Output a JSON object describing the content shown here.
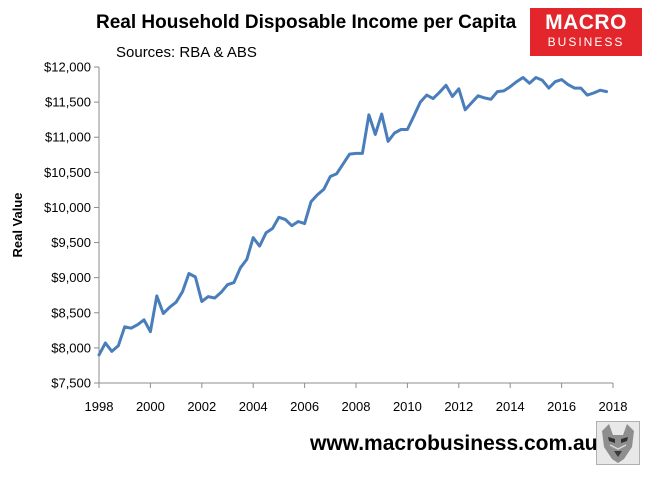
{
  "header": {
    "title": "Real Household Disposable Income per Capita",
    "subtitle": "Sources: RBA & ABS"
  },
  "logo": {
    "line1": "MACRO",
    "line2": "BUSINESS",
    "color": "#e2262b"
  },
  "footer": {
    "url": "www.macrobusiness.com.au"
  },
  "chart_data": {
    "type": "line",
    "title": "Real Household Disposable Income per Capita",
    "subtitle": "Sources: RBA & ABS",
    "xlabel": "",
    "ylabel": "Real Value",
    "xlim": [
      1998,
      2018
    ],
    "ylim": [
      7500,
      12000
    ],
    "x_ticks": [
      1998,
      2000,
      2002,
      2004,
      2006,
      2008,
      2010,
      2012,
      2014,
      2016,
      2018
    ],
    "x_tick_labels": [
      "1998",
      "2000",
      "2002",
      "2004",
      "2006",
      "2008",
      "2010",
      "2012",
      "2014",
      "2016",
      "2018"
    ],
    "y_ticks": [
      7500,
      8000,
      8500,
      9000,
      9500,
      10000,
      10500,
      11000,
      11500,
      12000
    ],
    "y_tick_labels": [
      "$7,500",
      "$8,000",
      "$8,500",
      "$9,000",
      "$9,500",
      "$10,000",
      "$10,500",
      "$11,000",
      "$11,500",
      "$12,000"
    ],
    "grid": false,
    "line_color": "#4a7ebb",
    "series": [
      {
        "x": [
          1998.0,
          1998.25,
          1998.5,
          1998.75,
          1999.0,
          1999.25,
          1999.5,
          1999.75,
          2000.0,
          2000.25,
          2000.5,
          2000.75,
          2001.0,
          2001.25,
          2001.5,
          2001.75,
          2002.0,
          2002.25,
          2002.5,
          2002.75,
          2003.0,
          2003.25,
          2003.5,
          2003.75,
          2004.0,
          2004.25,
          2004.5,
          2004.75,
          2005.0,
          2005.25,
          2005.5,
          2005.75,
          2006.0,
          2006.25,
          2006.5,
          2006.75,
          2007.0,
          2007.25,
          2007.5,
          2007.75,
          2008.0,
          2008.25,
          2008.5,
          2008.75,
          2009.0,
          2009.25,
          2009.5,
          2009.75,
          2010.0,
          2010.25,
          2010.5,
          2010.75,
          2011.0,
          2011.25,
          2011.5,
          2011.75,
          2012.0,
          2012.25,
          2012.5,
          2012.75,
          2013.0,
          2013.25,
          2013.5,
          2013.75,
          2014.0,
          2014.25,
          2014.5,
          2014.75,
          2015.0,
          2015.25,
          2015.5,
          2015.75,
          2016.0,
          2016.25,
          2016.5,
          2016.75,
          2017.0,
          2017.25,
          2017.5,
          2017.75
        ],
        "y": [
          7900,
          8070,
          7950,
          8030,
          8300,
          8280,
          8330,
          8400,
          8230,
          8740,
          8490,
          8580,
          8650,
          8800,
          9060,
          9010,
          8660,
          8730,
          8710,
          8790,
          8900,
          8930,
          9140,
          9260,
          9570,
          9450,
          9640,
          9700,
          9860,
          9830,
          9740,
          9800,
          9770,
          10080,
          10180,
          10260,
          10440,
          10480,
          10620,
          10760,
          10770,
          10770,
          11320,
          11040,
          11330,
          10940,
          11060,
          11110,
          11110,
          11300,
          11500,
          11600,
          11550,
          11640,
          11740,
          11580,
          11690,
          11390,
          11490,
          11590,
          11560,
          11540,
          11650,
          11660,
          11720,
          11790,
          11850,
          11770,
          11850,
          11810,
          11700,
          11790,
          11820,
          11750,
          11700,
          11700,
          11600,
          11630,
          11670,
          11650
        ]
      }
    ]
  }
}
